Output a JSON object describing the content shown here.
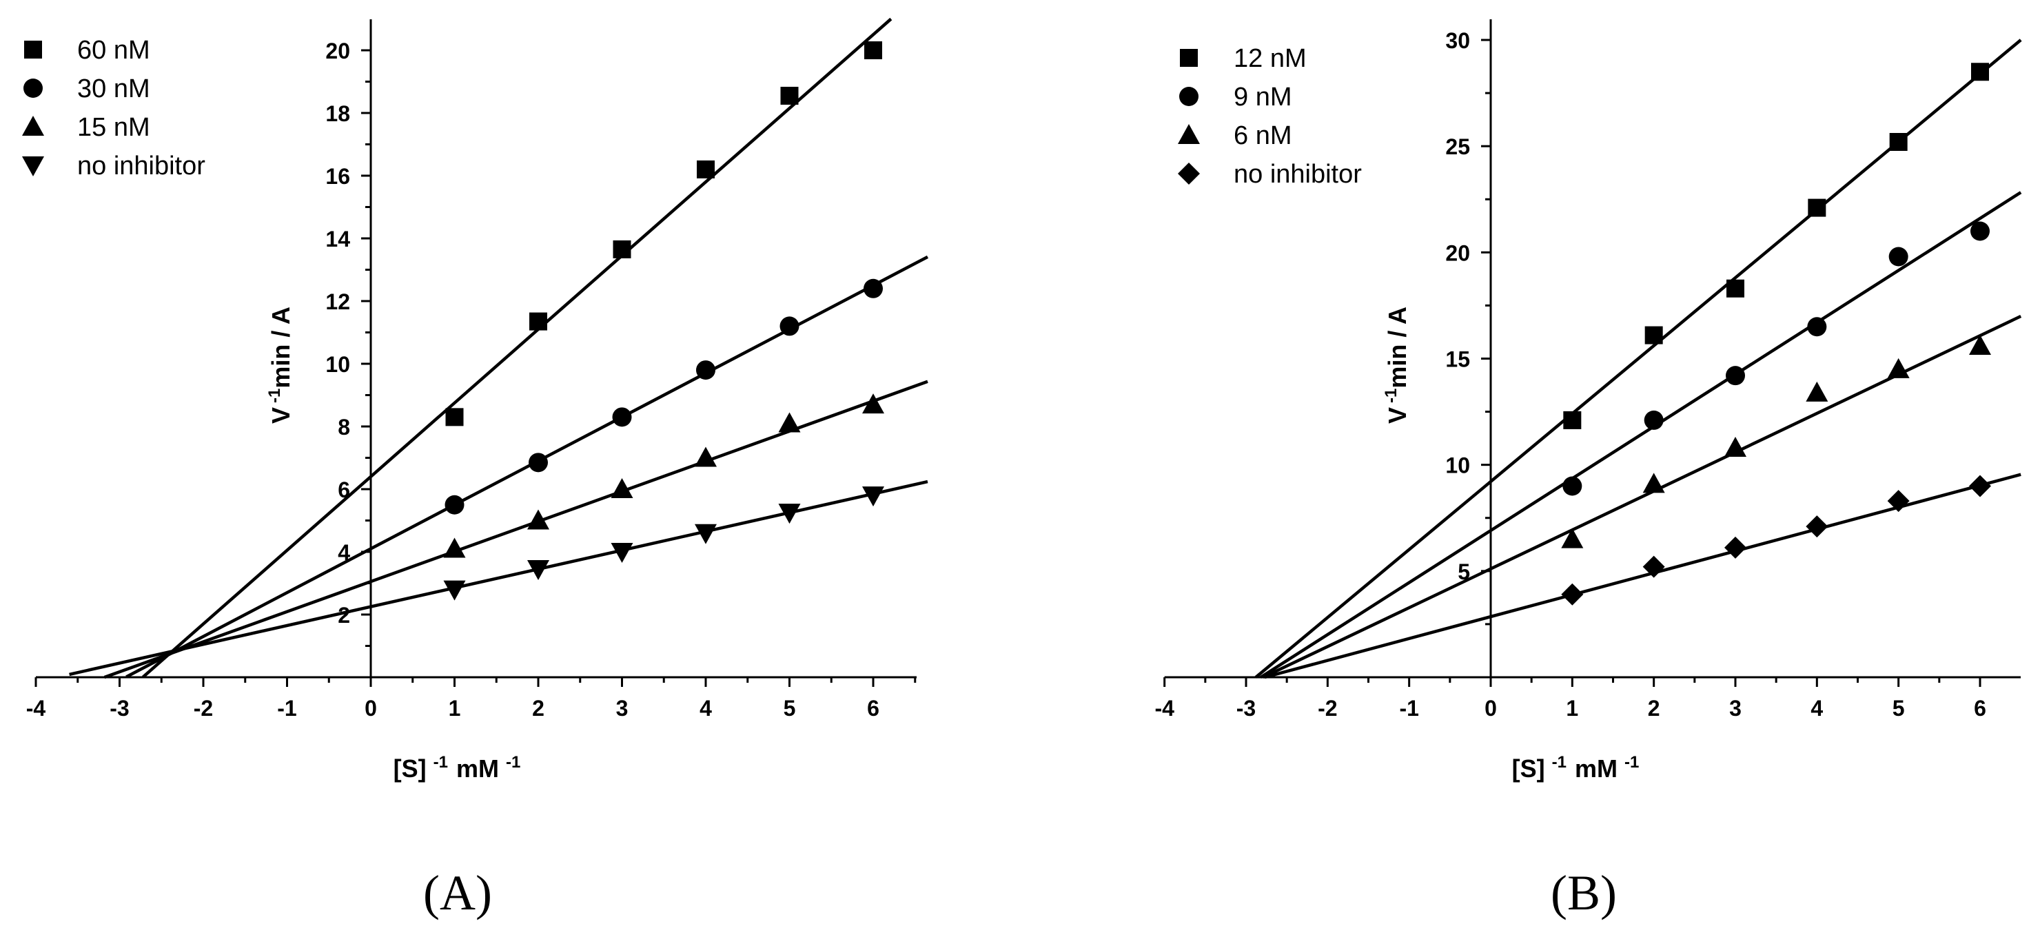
{
  "chart_data": [
    {
      "type": "scatter",
      "panel_label": "(A)",
      "xlabel": {
        "main": "[S]",
        "sup1": "-1",
        "mid": "mM",
        "sup2": "-1"
      },
      "ylabel": {
        "main": "V",
        "sup": "-1",
        "rest": "min / A"
      },
      "xlim": [
        -4,
        6.65
      ],
      "ylim": [
        0,
        21
      ],
      "xticks": [
        -4,
        -3,
        -2,
        -1,
        0,
        1,
        2,
        3,
        4,
        5,
        6
      ],
      "yticks": [
        2,
        4,
        6,
        8,
        10,
        12,
        14,
        16,
        18,
        20
      ],
      "legend_position": "top-left",
      "series": [
        {
          "name": "60 nM",
          "marker": "square",
          "x": [
            1,
            2,
            3,
            4,
            5,
            6
          ],
          "y": [
            8.3,
            11.35,
            13.65,
            16.2,
            18.55,
            20.0
          ],
          "fit": {
            "slope": 2.35,
            "intercept": 6.4,
            "x_start": -2.72
          }
        },
        {
          "name": "30 nM",
          "marker": "circle",
          "x": [
            1,
            2,
            3,
            4,
            5,
            6
          ],
          "y": [
            5.5,
            6.85,
            8.3,
            9.8,
            11.2,
            12.4
          ],
          "fit": {
            "slope": 1.4,
            "intercept": 4.1,
            "x_start": -2.92
          }
        },
        {
          "name": "15 nM",
          "marker": "triangle-up",
          "x": [
            1,
            2,
            3,
            4,
            5,
            6
          ],
          "y": [
            4.1,
            5.0,
            6.0,
            7.0,
            8.1,
            8.7
          ],
          "fit": {
            "slope": 0.96,
            "intercept": 3.05,
            "x_start": -3.18
          }
        },
        {
          "name": "no inhibitor",
          "marker": "triangle-down",
          "x": [
            1,
            2,
            3,
            4,
            5,
            6
          ],
          "y": [
            2.8,
            3.45,
            4.0,
            4.6,
            5.25,
            5.8
          ],
          "fit": {
            "slope": 0.6,
            "intercept": 2.25,
            "x_start": -3.6
          }
        }
      ]
    },
    {
      "type": "scatter",
      "panel_label": "(B)",
      "xlabel": {
        "main": "[S]",
        "sup1": "-1",
        "mid": "mM",
        "sup2": "-1"
      },
      "ylabel": {
        "main": "V",
        "sup": "-1",
        "rest": "min / A"
      },
      "xlim": [
        -4,
        6.5
      ],
      "ylim": [
        0,
        30.5
      ],
      "xticks": [
        -4,
        -3,
        -2,
        -1,
        0,
        1,
        2,
        3,
        4,
        5,
        6
      ],
      "yticks": [
        5,
        10,
        15,
        20,
        25,
        30
      ],
      "legend_position": "top-left",
      "series": [
        {
          "name": "12 nM",
          "marker": "square",
          "x": [
            1,
            2,
            3,
            4,
            5,
            6
          ],
          "y": [
            12.1,
            16.1,
            18.3,
            22.1,
            25.2,
            28.5
          ],
          "fit": {
            "slope": 3.2,
            "intercept": 9.2,
            "x_start": -2.88
          }
        },
        {
          "name": "9 nM",
          "marker": "circle",
          "x": [
            1,
            2,
            3,
            4,
            5,
            6
          ],
          "y": [
            9.0,
            12.1,
            14.2,
            16.5,
            19.8,
            21.0
          ],
          "fit": {
            "slope": 2.45,
            "intercept": 6.9,
            "x_start": -2.82
          }
        },
        {
          "name": "6 nM",
          "marker": "triangle-up",
          "x": [
            1,
            2,
            3,
            4,
            5,
            6
          ],
          "y": [
            6.5,
            9.1,
            10.8,
            13.4,
            14.5,
            15.6
          ],
          "fit": {
            "slope": 1.83,
            "intercept": 5.1,
            "x_start": -2.79
          }
        },
        {
          "name": "no inhibitor",
          "marker": "diamond",
          "x": [
            1,
            2,
            3,
            4,
            5,
            6
          ],
          "y": [
            3.9,
            5.2,
            6.1,
            7.1,
            8.3,
            9.0
          ],
          "fit": {
            "slope": 1.03,
            "intercept": 2.85,
            "x_start": -2.77
          }
        }
      ]
    }
  ]
}
